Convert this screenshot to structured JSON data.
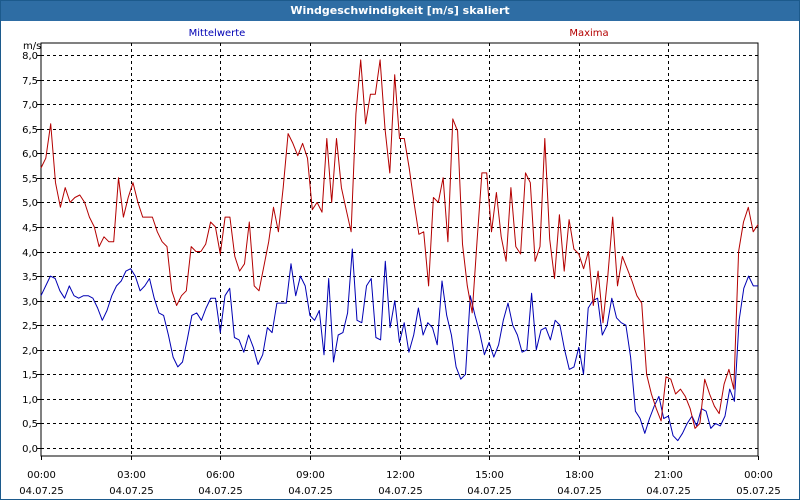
{
  "title": "Windgeschwindigkeit [m/s] skaliert",
  "colors": {
    "mean": "#0000b4",
    "max": "#b40000",
    "titlebar": "#2e6da4"
  },
  "chart_data": {
    "type": "line",
    "title": "Windgeschwindigkeit [m/s] skaliert",
    "ylabel": "m/s",
    "ylim": [
      0,
      8
    ],
    "xlim_hours": [
      0,
      24
    ],
    "grid": true,
    "legend_placement": "top",
    "y_ticks": [
      "0,0",
      "0,5",
      "1,0",
      "1,5",
      "2,0",
      "2,5",
      "3,0",
      "3,5",
      "4,0",
      "4,5",
      "5,0",
      "5,5",
      "6,0",
      "6,5",
      "7,0",
      "7,5",
      "8,0"
    ],
    "x_ticks": [
      {
        "time": "00:00",
        "date": "04.07.25"
      },
      {
        "time": "03:00",
        "date": "04.07.25"
      },
      {
        "time": "06:00",
        "date": "04.07.25"
      },
      {
        "time": "09:00",
        "date": "04.07.25"
      },
      {
        "time": "12:00",
        "date": "04.07.25"
      },
      {
        "time": "15:00",
        "date": "04.07.25"
      },
      {
        "time": "18:00",
        "date": "04.07.25"
      },
      {
        "time": "21:00",
        "date": "04.07.25"
      },
      {
        "time": "00:00",
        "date": "05.07.25"
      }
    ],
    "series": [
      {
        "name": "Mittelwerte",
        "color": "#0000b4",
        "values": [
          3.1,
          3.3,
          3.5,
          3.45,
          3.2,
          3.05,
          3.3,
          3.1,
          3.05,
          3.1,
          3.1,
          3.05,
          2.85,
          2.6,
          2.8,
          3.1,
          3.3,
          3.4,
          3.6,
          3.65,
          3.5,
          3.2,
          3.3,
          3.45,
          3.05,
          2.75,
          2.7,
          2.3,
          1.85,
          1.65,
          1.75,
          2.2,
          2.7,
          2.75,
          2.6,
          2.85,
          3.05,
          3.05,
          2.35,
          3.1,
          3.25,
          2.25,
          2.2,
          1.95,
          2.3,
          2.05,
          1.7,
          1.9,
          2.45,
          2.35,
          2.95,
          2.95,
          2.95,
          3.75,
          3.1,
          3.5,
          3.3,
          2.7,
          2.6,
          2.8,
          1.9,
          3.45,
          1.75,
          2.3,
          2.35,
          2.75,
          4.05,
          2.6,
          2.55,
          3.3,
          3.45,
          2.25,
          2.2,
          3.8,
          2.45,
          3.0,
          2.15,
          2.55,
          1.95,
          2.3,
          2.85,
          2.3,
          2.55,
          2.45,
          2.1,
          3.4,
          2.7,
          2.3,
          1.65,
          1.4,
          1.5,
          3.1,
          2.7,
          2.35,
          1.9,
          2.15,
          1.85,
          2.1,
          2.6,
          2.95,
          2.5,
          2.3,
          1.95,
          2.0,
          3.15,
          2.0,
          2.4,
          2.45,
          2.2,
          2.6,
          2.5,
          2.0,
          1.6,
          1.65,
          2.05,
          1.5,
          2.85,
          3.0,
          3.05,
          2.3,
          2.5,
          3.05,
          2.65,
          2.55,
          2.5,
          1.85,
          0.75,
          0.6,
          0.3,
          0.6,
          0.85,
          1.05,
          0.6,
          0.65,
          0.25,
          0.15,
          0.3,
          0.5,
          0.65,
          0.45,
          0.8,
          0.75,
          0.4,
          0.5,
          0.45,
          0.65,
          1.2,
          0.95,
          2.6,
          3.25,
          3.5,
          3.3,
          3.3
        ]
      },
      {
        "name": "Maxima",
        "color": "#b40000",
        "values": [
          5.7,
          5.9,
          6.6,
          5.4,
          4.9,
          5.3,
          5.0,
          5.1,
          5.15,
          5.0,
          4.7,
          4.5,
          4.1,
          4.3,
          4.2,
          4.2,
          5.5,
          4.7,
          5.1,
          5.4,
          5.0,
          4.7,
          4.7,
          4.7,
          4.4,
          4.2,
          4.1,
          3.2,
          2.9,
          3.1,
          3.2,
          4.1,
          4.0,
          4.0,
          4.15,
          4.6,
          4.5,
          3.95,
          4.7,
          4.7,
          3.9,
          3.6,
          3.75,
          4.6,
          3.3,
          3.2,
          3.7,
          4.2,
          4.9,
          4.4,
          5.3,
          6.4,
          6.2,
          5.95,
          6.2,
          5.9,
          4.85,
          5.0,
          4.8,
          6.3,
          5.0,
          6.3,
          5.3,
          4.85,
          4.4,
          6.8,
          7.9,
          6.6,
          7.2,
          7.2,
          7.9,
          6.5,
          5.6,
          7.6,
          6.3,
          6.3,
          5.7,
          5.0,
          4.35,
          4.4,
          3.3,
          5.1,
          5.0,
          5.5,
          4.2,
          6.7,
          6.45,
          4.15,
          3.3,
          2.75,
          4.2,
          5.6,
          5.6,
          4.4,
          5.2,
          4.3,
          3.8,
          5.3,
          4.1,
          3.95,
          5.6,
          5.4,
          3.8,
          4.1,
          6.3,
          4.25,
          3.45,
          4.75,
          3.6,
          4.65,
          4.05,
          3.95,
          3.65,
          4.0,
          2.9,
          3.6,
          2.55,
          3.5,
          4.7,
          3.3,
          3.9,
          3.65,
          3.4,
          3.1,
          2.95,
          1.5,
          1.1,
          0.8,
          0.55,
          1.45,
          1.4,
          1.1,
          1.2,
          1.05,
          0.8,
          0.4,
          0.5,
          1.4,
          1.1,
          0.85,
          0.7,
          1.3,
          1.6,
          1.2,
          4.0,
          4.6,
          4.9,
          4.4,
          4.55
        ]
      }
    ]
  }
}
